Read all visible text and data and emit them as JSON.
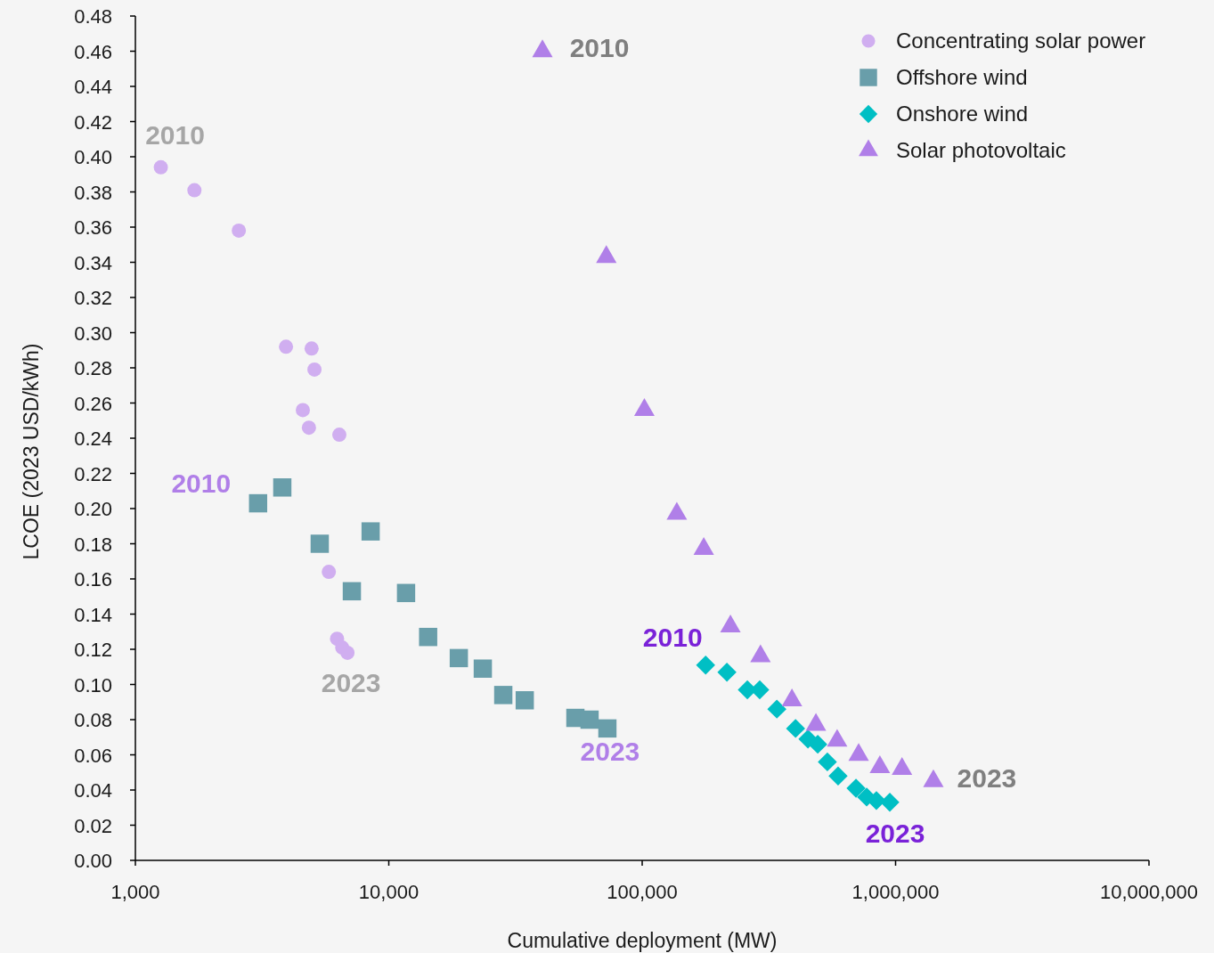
{
  "chart_data": {
    "type": "scatter",
    "xlabel": "Cumulative deployment (MW)",
    "ylabel": "LCOE (2023 USD/kWh)",
    "log": "x",
    "xlim": [
      1000,
      10000000
    ],
    "xticks": [
      {
        "value": 1000,
        "label": "1,000"
      },
      {
        "value": 10000,
        "label": "10,000"
      },
      {
        "value": 100000,
        "label": "100,000"
      },
      {
        "value": 1000000,
        "label": "1,000,000"
      },
      {
        "value": 10000000,
        "label": "10,000,000"
      }
    ],
    "ylim": [
      0,
      0.48
    ],
    "yticks": [
      {
        "value": 0,
        "label": "0.00"
      },
      {
        "value": 0.02,
        "label": "0.02"
      },
      {
        "value": 0.04,
        "label": "0.04"
      },
      {
        "value": 0.06,
        "label": "0.06"
      },
      {
        "value": 0.08,
        "label": "0.08"
      },
      {
        "value": 0.1,
        "label": "0.10"
      },
      {
        "value": 0.12,
        "label": "0.12"
      },
      {
        "value": 0.14,
        "label": "0.14"
      },
      {
        "value": 0.16,
        "label": "0.16"
      },
      {
        "value": 0.18,
        "label": "0.18"
      },
      {
        "value": 0.2,
        "label": "0.20"
      },
      {
        "value": 0.22,
        "label": "0.22"
      },
      {
        "value": 0.24,
        "label": "0.24"
      },
      {
        "value": 0.26,
        "label": "0.26"
      },
      {
        "value": 0.28,
        "label": "0.28"
      },
      {
        "value": 0.3,
        "label": "0.30"
      },
      {
        "value": 0.32,
        "label": "0.32"
      },
      {
        "value": 0.34,
        "label": "0.34"
      },
      {
        "value": 0.36,
        "label": "0.36"
      },
      {
        "value": 0.38,
        "label": "0.38"
      },
      {
        "value": 0.4,
        "label": "0.40"
      },
      {
        "value": 0.42,
        "label": "0.42"
      },
      {
        "value": 0.44,
        "label": "0.44"
      },
      {
        "value": 0.46,
        "label": "0.46"
      },
      {
        "value": 0.48,
        "label": "0.48"
      }
    ],
    "grid": false,
    "legend": "top right",
    "series": [
      {
        "name": "Concentrating solar power",
        "color": "#d0aef0",
        "marker": "circle",
        "x": [
          1260,
          1710,
          2560,
          3930,
          4960,
          5090,
          4580,
          4840,
          6380,
          5800,
          6250,
          6550,
          6870
        ],
        "values": [
          0.394,
          0.381,
          0.358,
          0.292,
          0.291,
          0.279,
          0.256,
          0.246,
          0.242,
          0.164,
          0.126,
          0.121,
          0.118
        ]
      },
      {
        "name": "Offshore wind",
        "color": "#699eaa",
        "marker": "square",
        "x": [
          3050,
          3800,
          5340,
          7150,
          8480,
          11700,
          14300,
          18900,
          23500,
          28300,
          34400,
          54500,
          62000,
          72900
        ],
        "values": [
          0.203,
          0.212,
          0.18,
          0.153,
          0.187,
          0.152,
          0.127,
          0.115,
          0.109,
          0.094,
          0.091,
          0.081,
          0.08,
          0.075
        ]
      },
      {
        "name": "Onshore wind",
        "color": "#00bfc4",
        "marker": "diamond",
        "x": [
          178000,
          216000,
          260000,
          291000,
          340000,
          403000,
          451000,
          493000,
          538000,
          593000,
          698000,
          769000,
          840000,
          949000
        ],
        "values": [
          0.111,
          0.107,
          0.097,
          0.097,
          0.086,
          0.075,
          0.069,
          0.066,
          0.056,
          0.048,
          0.041,
          0.036,
          0.034,
          0.033
        ]
      },
      {
        "name": "Solar photovoltaic",
        "color": "#b07fe8",
        "marker": "triangle",
        "x": [
          40400,
          72200,
          102000,
          137000,
          175000,
          223000,
          293000,
          390000,
          485000,
          588000,
          715000,
          867000,
          1060000,
          1410000
        ],
        "values": [
          0.46,
          0.343,
          0.256,
          0.197,
          0.177,
          0.133,
          0.116,
          0.091,
          0.077,
          0.068,
          0.06,
          0.053,
          0.052,
          0.045
        ]
      }
    ],
    "annotations": [
      {
        "text": "2010",
        "x": 1260,
        "y": 0.394
      },
      {
        "text": "2023",
        "x": 6870,
        "y": 0.118
      },
      {
        "text": "2010",
        "x": 3050,
        "y": 0.203
      },
      {
        "text": "2023",
        "x": 72900,
        "y": 0.075
      },
      {
        "text": "2010",
        "x": 178000,
        "y": 0.111
      },
      {
        "text": "2023",
        "x": 949000,
        "y": 0.033
      },
      {
        "text": "2010",
        "x": 40400,
        "y": 0.46
      },
      {
        "text": "2023",
        "x": 1410000,
        "y": 0.045
      }
    ]
  }
}
